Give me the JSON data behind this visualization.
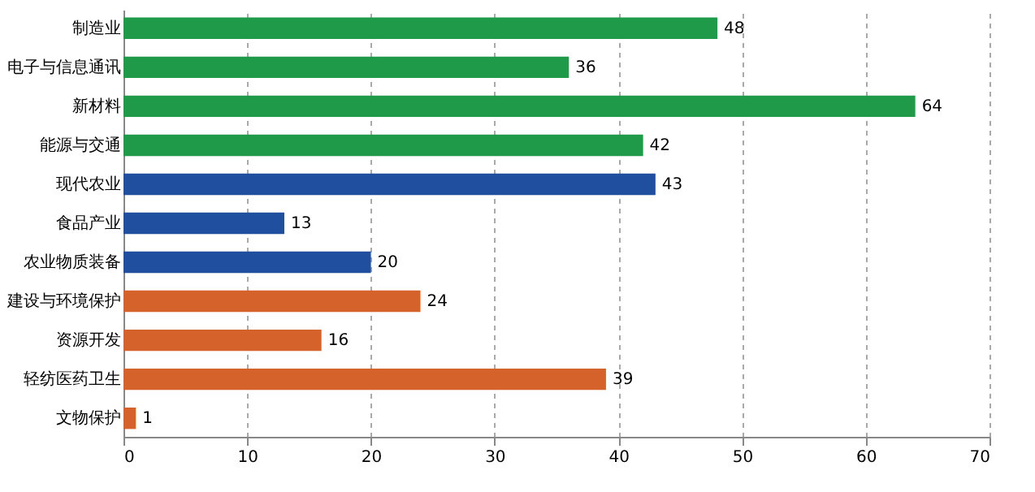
{
  "chart_data": {
    "type": "bar",
    "orientation": "horizontal",
    "categories": [
      "制造业",
      "电子与信息通讯",
      "新材料",
      "能源与交通",
      "现代农业",
      "食品产业",
      "农业物质装备",
      "建设与环境保护",
      "资源开发",
      "轻纺医药卫生",
      "文物保护"
    ],
    "values": [
      48,
      36,
      64,
      42,
      43,
      13,
      20,
      24,
      16,
      39,
      1
    ],
    "colors": [
      "#1e9a48",
      "#1e9a48",
      "#1e9a48",
      "#1e9a48",
      "#1f4f9e",
      "#1f4f9e",
      "#1f4f9e",
      "#d5612b",
      "#d5612b",
      "#d5612b",
      "#d5612b"
    ],
    "xlim": [
      0,
      70
    ],
    "xticks": [
      0,
      10,
      20,
      30,
      40,
      50,
      60,
      70
    ],
    "grid": "x",
    "data_labels": true
  }
}
